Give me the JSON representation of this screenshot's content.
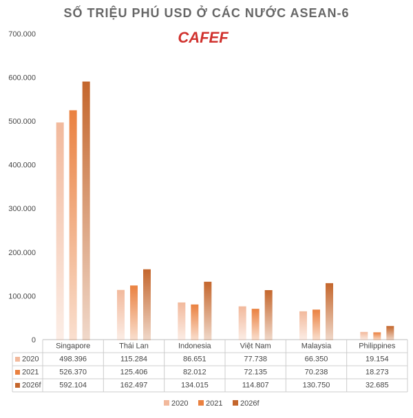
{
  "chart_data": {
    "type": "bar",
    "title": "SỐ TRIỆU PHÚ USD Ở CÁC NƯỚC ASEAN-6",
    "logo": "CAFEF",
    "categories": [
      "Singapore",
      "Thái Lan",
      "Indonesia",
      "Việt Nam",
      "Malaysia",
      "Philippines"
    ],
    "series": [
      {
        "name": "2020",
        "color": "#f2b99c",
        "values": [
          498396,
          115284,
          86651,
          77738,
          66350,
          19154
        ],
        "value_labels": [
          "498.396",
          "115.284",
          "86.651",
          "77.738",
          "66.350",
          "19.154"
        ]
      },
      {
        "name": "2021",
        "color": "#ea8140",
        "values": [
          526370,
          125406,
          82012,
          72135,
          70238,
          18273
        ],
        "value_labels": [
          "526.370",
          "125.406",
          "82.012",
          "72.135",
          "70.238",
          "18.273"
        ]
      },
      {
        "name": "2026f",
        "color": "#c4662c",
        "values": [
          592104,
          162497,
          134015,
          114807,
          130750,
          32685
        ],
        "value_labels": [
          "592.104",
          "162.497",
          "134.015",
          "114.807",
          "130.750",
          "32.685"
        ]
      }
    ],
    "ylim": [
      0,
      700000
    ],
    "yticks": [
      0,
      {
        "value": 100000,
        "label": "100.000"
      },
      {
        "value": 200000,
        "label": "200.000"
      },
      {
        "value": 300000,
        "label": "300.000"
      },
      {
        "value": 400000,
        "label": "400.000"
      },
      {
        "value": 500000,
        "label": "500.000"
      },
      {
        "value": 600000,
        "label": "600.000"
      },
      {
        "value": 700000,
        "label": "700.000"
      }
    ],
    "grid": false
  }
}
